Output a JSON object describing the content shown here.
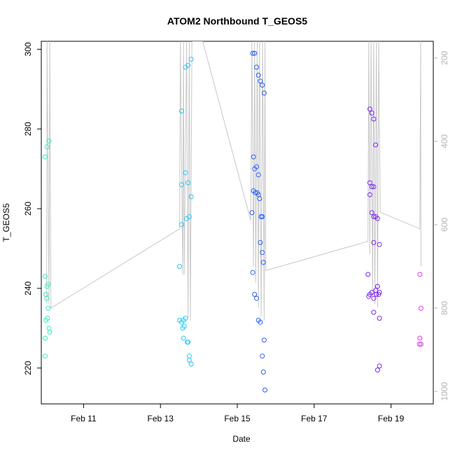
{
  "chart_data": {
    "type": "scatter",
    "title": "ATOM2 Northbound T_GEOS5",
    "xlabel": "Date",
    "ylabel": "T_GEOS5",
    "x_ticks": [
      "Feb 11",
      "Feb 13",
      "Feb 15",
      "Feb 17",
      "Feb 19"
    ],
    "x_tick_values": [
      11,
      13,
      15,
      17,
      19
    ],
    "xlim": [
      9.9,
      20.1
    ],
    "ylim": [
      211,
      302
    ],
    "y_ticks": [
      220,
      240,
      260,
      280,
      300
    ],
    "right_axis": {
      "label": "",
      "ticks": [
        200,
        400,
        600,
        800,
        1000
      ],
      "range_top_to_bottom": [
        160,
        1030
      ],
      "color": "#b3b3b3"
    },
    "grid": false,
    "legend": "none",
    "point_style": "open-circle",
    "line_color": "#c8c8c8",
    "series": [
      {
        "color": "#3de8c2",
        "points": [
          [
            10.0,
            243.0
          ],
          [
            10.02,
            238.5
          ],
          [
            10.05,
            240.5
          ],
          [
            10.08,
            241.0
          ],
          [
            10.0,
            273.0
          ],
          [
            10.05,
            275.5
          ],
          [
            10.1,
            277.0
          ],
          [
            10.02,
            232.0
          ],
          [
            10.06,
            232.5
          ],
          [
            10.1,
            230.0
          ],
          [
            10.12,
            229.0
          ],
          [
            10.0,
            227.5
          ],
          [
            10.0,
            223.0
          ],
          [
            10.08,
            235.0
          ],
          [
            10.04,
            237.5
          ]
        ]
      },
      {
        "color": "#2fc5f0",
        "points": [
          [
            13.5,
            245.5
          ],
          [
            13.55,
            256.0
          ],
          [
            13.55,
            266.0
          ],
          [
            13.55,
            284.5
          ],
          [
            13.65,
            269.0
          ],
          [
            13.65,
            295.5
          ],
          [
            13.72,
            296.0
          ],
          [
            13.8,
            297.5
          ],
          [
            13.68,
            257.5
          ],
          [
            13.75,
            258.0
          ],
          [
            13.72,
            266.5
          ],
          [
            13.8,
            263.0
          ],
          [
            13.5,
            232.0
          ],
          [
            13.55,
            231.5
          ],
          [
            13.6,
            232.0
          ],
          [
            13.62,
            230.5
          ],
          [
            13.58,
            230.0
          ],
          [
            13.65,
            232.5
          ],
          [
            13.6,
            227.5
          ],
          [
            13.7,
            226.5
          ],
          [
            13.72,
            226.5
          ],
          [
            13.75,
            223.0
          ],
          [
            13.75,
            222.0
          ],
          [
            13.8,
            221.0
          ]
        ]
      },
      {
        "color": "#2d5ff0",
        "points": [
          [
            15.4,
            299.0
          ],
          [
            15.45,
            299.0
          ],
          [
            15.5,
            295.5
          ],
          [
            15.55,
            293.5
          ],
          [
            15.6,
            292.0
          ],
          [
            15.65,
            291.0
          ],
          [
            15.7,
            289.0
          ],
          [
            15.42,
            273.0
          ],
          [
            15.45,
            270.0
          ],
          [
            15.5,
            270.5
          ],
          [
            15.55,
            268.5
          ],
          [
            15.42,
            264.5
          ],
          [
            15.47,
            264.0
          ],
          [
            15.52,
            264.0
          ],
          [
            15.55,
            263.5
          ],
          [
            15.58,
            262.5
          ],
          [
            15.62,
            258.0
          ],
          [
            15.65,
            258.0
          ],
          [
            15.38,
            259.0
          ],
          [
            15.6,
            251.5
          ],
          [
            15.65,
            249.0
          ],
          [
            15.68,
            246.5
          ],
          [
            15.4,
            244.0
          ],
          [
            15.45,
            238.5
          ],
          [
            15.5,
            237.5
          ],
          [
            15.55,
            232.0
          ],
          [
            15.6,
            231.5
          ],
          [
            15.7,
            227.0
          ],
          [
            15.65,
            223.0
          ],
          [
            15.68,
            219.0
          ],
          [
            15.72,
            214.5
          ]
        ]
      },
      {
        "color": "#7a28f0",
        "points": [
          [
            18.45,
            285.0
          ],
          [
            18.5,
            284.0
          ],
          [
            18.55,
            282.5
          ],
          [
            18.6,
            276.0
          ],
          [
            18.45,
            266.5
          ],
          [
            18.5,
            265.5
          ],
          [
            18.55,
            265.5
          ],
          [
            18.45,
            263.5
          ],
          [
            18.5,
            259.0
          ],
          [
            18.55,
            258.0
          ],
          [
            18.6,
            258.0
          ],
          [
            18.65,
            257.5
          ],
          [
            18.55,
            251.5
          ],
          [
            18.7,
            251.0
          ],
          [
            18.4,
            243.5
          ],
          [
            18.42,
            238.0
          ],
          [
            18.45,
            238.5
          ],
          [
            18.5,
            239.0
          ],
          [
            18.55,
            237.5
          ],
          [
            18.6,
            239.5
          ],
          [
            18.65,
            240.5
          ],
          [
            18.62,
            238.5
          ],
          [
            18.7,
            239.0
          ],
          [
            18.68,
            238.5
          ],
          [
            18.55,
            234.0
          ],
          [
            18.7,
            232.5
          ],
          [
            18.7,
            220.5
          ],
          [
            18.65,
            219.5
          ]
        ]
      },
      {
        "color": "#e03ae8",
        "points": [
          [
            19.75,
            243.5
          ],
          [
            19.78,
            235.0
          ],
          [
            19.75,
            227.5
          ],
          [
            19.78,
            226.0
          ],
          [
            19.74,
            226.0
          ]
        ]
      }
    ],
    "pressure_line": {
      "axis": "right",
      "points": [
        [
          10.04,
          790
        ],
        [
          10.05,
          160
        ],
        [
          10.1,
          790
        ],
        [
          10.12,
          160
        ],
        [
          10.15,
          800
        ],
        [
          13.5,
          610
        ],
        [
          13.52,
          160
        ],
        [
          13.58,
          720
        ],
        [
          13.6,
          160
        ],
        [
          13.62,
          720
        ],
        [
          13.68,
          160
        ],
        [
          13.72,
          825
        ],
        [
          13.75,
          160
        ],
        [
          13.78,
          830
        ],
        [
          13.82,
          160
        ],
        [
          14.1,
          160
        ],
        [
          15.35,
          590
        ],
        [
          15.38,
          160
        ],
        [
          15.42,
          700
        ],
        [
          15.45,
          160
        ],
        [
          15.48,
          740
        ],
        [
          15.52,
          160
        ],
        [
          15.55,
          800
        ],
        [
          15.58,
          160
        ],
        [
          15.62,
          820
        ],
        [
          15.66,
          160
        ],
        [
          15.7,
          830
        ],
        [
          15.72,
          160
        ],
        [
          15.74,
          710
        ],
        [
          18.4,
          640
        ],
        [
          18.42,
          160
        ],
        [
          18.45,
          670
        ],
        [
          18.48,
          160
        ],
        [
          18.52,
          770
        ],
        [
          18.55,
          160
        ],
        [
          18.58,
          790
        ],
        [
          18.62,
          160
        ],
        [
          18.65,
          800
        ],
        [
          18.68,
          160
        ],
        [
          18.72,
          570
        ],
        [
          19.75,
          610
        ],
        [
          19.77,
          160
        ],
        [
          19.78,
          700
        ]
      ]
    }
  }
}
